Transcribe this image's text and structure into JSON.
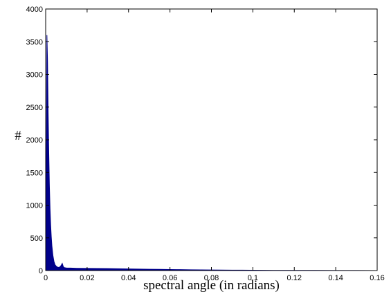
{
  "chart_data": {
    "type": "area",
    "title": "",
    "xlabel": "spectral angle (in radians)",
    "ylabel": "#",
    "xlim": [
      0,
      0.16
    ],
    "ylim": [
      0,
      4000
    ],
    "x_ticks": [
      0,
      0.02,
      0.04,
      0.06,
      0.08,
      0.1,
      0.12,
      0.14,
      0.16
    ],
    "x_tick_labels": [
      "0",
      "0.02",
      "0.04",
      "0.06",
      "0.08",
      "0.1",
      "0.12",
      "0.14",
      "0.16"
    ],
    "y_ticks": [
      0,
      500,
      1000,
      1500,
      2000,
      2500,
      3000,
      3500,
      4000
    ],
    "y_tick_labels": [
      "0",
      "500",
      "1000",
      "1500",
      "2000",
      "2500",
      "3000",
      "3500",
      "4000"
    ],
    "grid": false,
    "fill_color": "#00008b",
    "series": [
      {
        "x": [
          0.0,
          0.0003,
          0.0006,
          0.0009,
          0.0012,
          0.0015,
          0.0018,
          0.0021,
          0.0024,
          0.0027,
          0.003,
          0.0035,
          0.004,
          0.0045,
          0.005,
          0.0055,
          0.006,
          0.0065,
          0.007,
          0.0075,
          0.008,
          0.0085,
          0.009,
          0.0095,
          0.01,
          0.012,
          0.015,
          0.02,
          0.025,
          0.03,
          0.035,
          0.04,
          0.045,
          0.05,
          0.055,
          0.06,
          0.065,
          0.07,
          0.075,
          0.08,
          0.085,
          0.09,
          0.095,
          0.1,
          0.105,
          0.11,
          0.115,
          0.12,
          0.13,
          0.14,
          0.15,
          0.16
        ],
        "values": [
          0,
          1500,
          3600,
          3200,
          2400,
          1800,
          1300,
          950,
          700,
          520,
          380,
          230,
          140,
          90,
          70,
          55,
          50,
          48,
          60,
          80,
          110,
          60,
          45,
          42,
          40,
          38,
          35,
          33,
          32,
          30,
          28,
          25,
          22,
          20,
          18,
          16,
          14,
          12,
          10,
          9,
          8,
          7,
          6,
          5,
          4,
          3,
          3,
          2,
          2,
          1,
          1,
          0
        ]
      }
    ]
  }
}
